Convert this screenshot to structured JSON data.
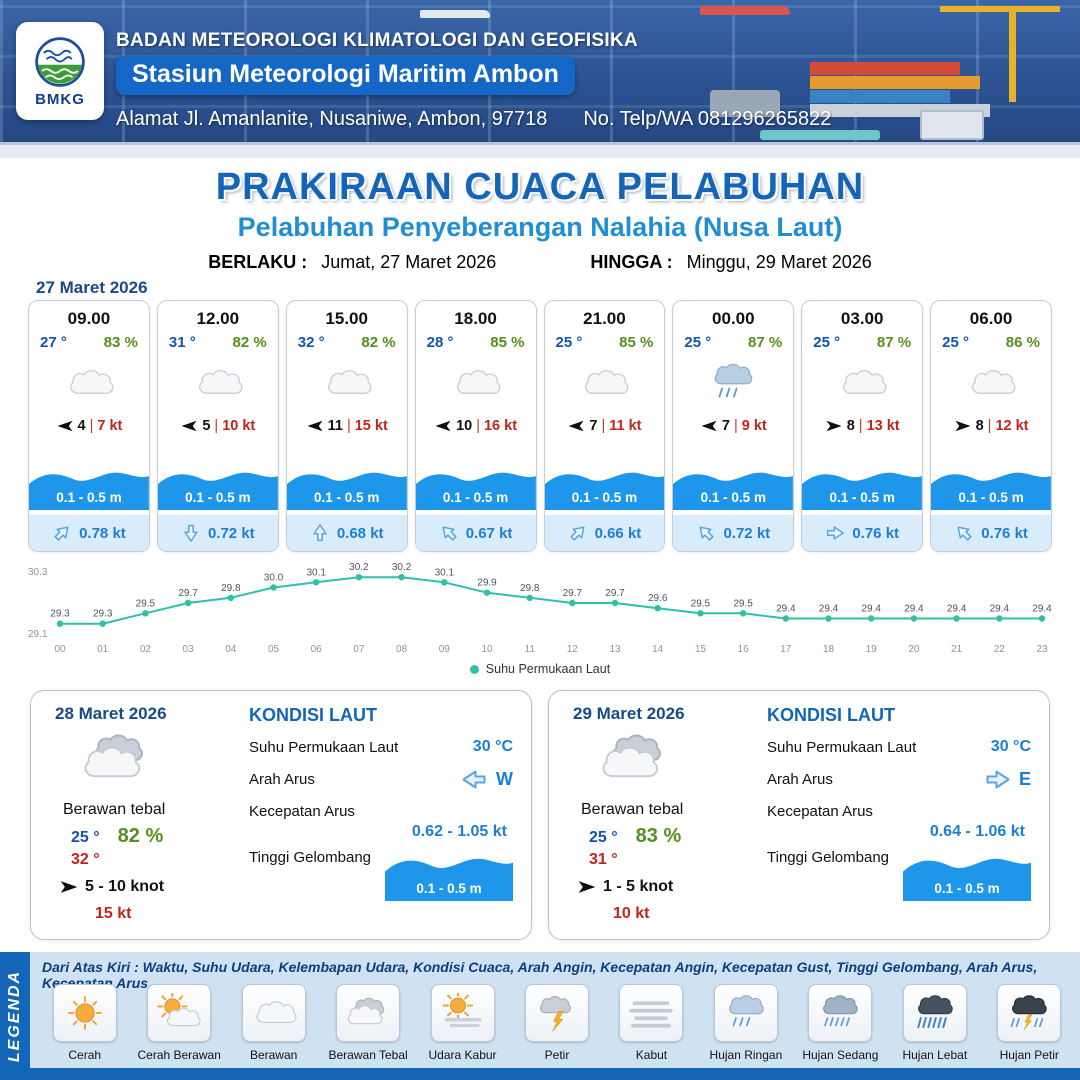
{
  "header": {
    "logo_label": "BMKG",
    "agency": "BADAN METEOROLOGI KLIMATOLOGI DAN GEOFISIKA",
    "station": "Stasiun Meteorologi Maritim Ambon",
    "address": "Alamat Jl. Amanlanite, Nusaniwe, Ambon, 97718",
    "contact": "No. Telp/WA  081296265822"
  },
  "title": {
    "main": "PRAKIRAAN CUACA PELABUHAN",
    "subtitle": "Pelabuhan Penyeberangan Nalahia (Nusa Laut)",
    "valid_from_label": "BERLAKU :",
    "valid_from": "Jumat, 27 Maret 2026",
    "valid_to_label": "HINGGA :",
    "valid_to": "Minggu, 29 Maret 2026"
  },
  "forecast_day": {
    "date": "27 Maret 2026",
    "cards": [
      {
        "time": "09.00",
        "temp": "27 °",
        "humidity": "83 %",
        "icon": "berawan",
        "wind_dir_deg": 270,
        "wind_speed": "4",
        "gust": "7 kt",
        "wave": "0.1 - 0.5 m",
        "current_dir_deg": 45,
        "current_speed": "0.78 kt"
      },
      {
        "time": "12.00",
        "temp": "31 °",
        "humidity": "82 %",
        "icon": "berawan",
        "wind_dir_deg": 270,
        "wind_speed": "5",
        "gust": "10 kt",
        "wave": "0.1 - 0.5 m",
        "current_dir_deg": 180,
        "current_speed": "0.72 kt"
      },
      {
        "time": "15.00",
        "temp": "32 °",
        "humidity": "82 %",
        "icon": "berawan",
        "wind_dir_deg": 270,
        "wind_speed": "11",
        "gust": "15 kt",
        "wave": "0.1 - 0.5 m",
        "current_dir_deg": 0,
        "current_speed": "0.68 kt"
      },
      {
        "time": "18.00",
        "temp": "28 °",
        "humidity": "85 %",
        "icon": "berawan",
        "wind_dir_deg": 270,
        "wind_speed": "10",
        "gust": "16 kt",
        "wave": "0.1 - 0.5 m",
        "current_dir_deg": 315,
        "current_speed": "0.67 kt"
      },
      {
        "time": "21.00",
        "temp": "25 °",
        "humidity": "85 %",
        "icon": "berawan",
        "wind_dir_deg": 270,
        "wind_speed": "7",
        "gust": "11 kt",
        "wave": "0.1 - 0.5 m",
        "current_dir_deg": 45,
        "current_speed": "0.66 kt"
      },
      {
        "time": "00.00",
        "temp": "25 °",
        "humidity": "87 %",
        "icon": "hujan-ringan",
        "wind_dir_deg": 270,
        "wind_speed": "7",
        "gust": "9 kt",
        "wave": "0.1 - 0.5 m",
        "current_dir_deg": 315,
        "current_speed": "0.72 kt"
      },
      {
        "time": "03.00",
        "temp": "25 °",
        "humidity": "87 %",
        "icon": "berawan",
        "wind_dir_deg": 90,
        "wind_speed": "8",
        "gust": "13 kt",
        "wave": "0.1 - 0.5 m",
        "current_dir_deg": 90,
        "current_speed": "0.76 kt"
      },
      {
        "time": "06.00",
        "temp": "25 °",
        "humidity": "86 %",
        "icon": "berawan",
        "wind_dir_deg": 90,
        "wind_speed": "8",
        "gust": "12 kt",
        "wave": "0.1 - 0.5 m",
        "current_dir_deg": 315,
        "current_speed": "0.76 kt"
      }
    ]
  },
  "chart_data": {
    "type": "line",
    "x": [
      "00",
      "01",
      "02",
      "03",
      "04",
      "05",
      "06",
      "07",
      "08",
      "09",
      "10",
      "11",
      "12",
      "13",
      "14",
      "15",
      "16",
      "17",
      "18",
      "19",
      "20",
      "21",
      "22",
      "23"
    ],
    "series": [
      {
        "name": "Suhu Permukaan Laut",
        "values": [
          29.3,
          29.3,
          29.5,
          29.7,
          29.8,
          30.0,
          30.1,
          30.2,
          30.2,
          30.1,
          29.9,
          29.8,
          29.7,
          29.7,
          29.6,
          29.5,
          29.5,
          29.4,
          29.4,
          29.4,
          29.4,
          29.4,
          29.4,
          29.4
        ]
      }
    ],
    "ylim": [
      29.1,
      30.3
    ],
    "line_color": "#2fc0aa",
    "legend_position": "bottom",
    "grid": false
  },
  "sea_labels": {
    "title": "KONDISI LAUT",
    "sst": "Suhu Permukaan Laut",
    "current_dir": "Arah Arus",
    "current_speed": "Kecepatan Arus",
    "wave": "Tinggi Gelombang"
  },
  "day_summaries": [
    {
      "date": "28 Maret 2026",
      "icon": "berawan-tebal",
      "condition": "Berawan tebal",
      "temp_min": "25 °",
      "humidity": "82 %",
      "temp_max": "32 °",
      "wind_dir_deg": 90,
      "wind_range": "5  - 10 knot",
      "gust": "15 kt",
      "sst": "30 °C",
      "current_dir": "W",
      "current_dir_deg": 270,
      "current_speed": "0.62 - 1.05 kt",
      "wave": "0.1 - 0.5 m"
    },
    {
      "date": "29 Maret 2026",
      "icon": "berawan-tebal",
      "condition": "Berawan tebal",
      "temp_min": "25 °",
      "humidity": "83 %",
      "temp_max": "31 °",
      "wind_dir_deg": 90,
      "wind_range": "1  - 5 knot",
      "gust": "10 kt",
      "sst": "30 °C",
      "current_dir": "E",
      "current_dir_deg": 90,
      "current_speed": "0.64 - 1.06 kt",
      "wave": "0.1 - 0.5 m"
    }
  ],
  "legend": {
    "title": "LEGENDA",
    "note": "Dari Atas Kiri : Waktu, Suhu Udara, Kelembapan Udara, Kondisi Cuaca, Arah Angin, Kecepatan Angin, Kecepatan Gust, Tinggi Gelombang, Arah Arus, Kecepatan Arus",
    "items": [
      {
        "label": "Cerah",
        "icon": "cerah"
      },
      {
        "label": "Cerah Berawan",
        "icon": "cerah-berawan"
      },
      {
        "label": "Berawan",
        "icon": "berawan"
      },
      {
        "label": "Berawan Tebal",
        "icon": "berawan-tebal"
      },
      {
        "label": "Udara Kabur",
        "icon": "udara-kabur"
      },
      {
        "label": "Petir",
        "icon": "petir"
      },
      {
        "label": "Kabut",
        "icon": "kabut"
      },
      {
        "label": "Hujan Ringan",
        "icon": "hujan-ringan"
      },
      {
        "label": "Hujan Sedang",
        "icon": "hujan-sedang"
      },
      {
        "label": "Hujan Lebat",
        "icon": "hujan-lebat"
      },
      {
        "label": "Hujan Petir",
        "icon": "hujan-petir"
      }
    ]
  },
  "colors": {
    "header_blue": "#2b5191",
    "accent_blue": "#1467c6",
    "title_blue": "#1464b8",
    "subtitle_blue": "#1e8fd5",
    "temp_blue": "#1553a8",
    "humidity_green": "#568f1d",
    "gust_red": "#c2231b",
    "wave_blue": "#1e97ea",
    "current_blue": "#1c7fd2",
    "chart_teal": "#2fc0aa",
    "legend_bg": "#cfe2f2"
  }
}
